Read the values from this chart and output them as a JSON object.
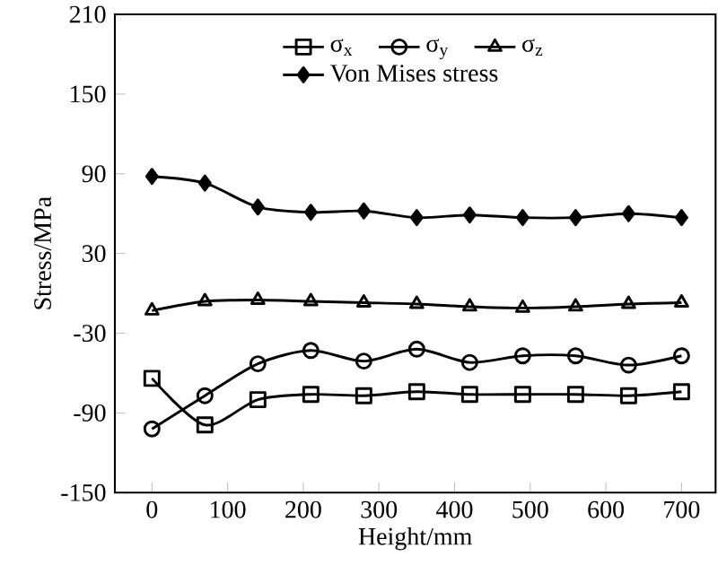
{
  "chart_data": {
    "type": "line",
    "xlabel": "Height/mm",
    "ylabel": "Stress/MPa",
    "x": [
      0,
      70,
      140,
      210,
      280,
      350,
      420,
      490,
      560,
      630,
      700
    ],
    "series": [
      {
        "name": "σ$_{x}$",
        "color": "#000000",
        "marker": "square",
        "values": [
          -64,
          -99,
          -80,
          -76,
          -77,
          -74,
          -76,
          -76,
          -76,
          -77,
          -74
        ]
      },
      {
        "name": "σ$_{y}$",
        "color": "#000000",
        "marker": "circle",
        "values": [
          -102,
          -77,
          -53,
          -43,
          -51,
          -42,
          -52,
          -47,
          -47,
          -54,
          -47
        ]
      },
      {
        "name": "σ$_{z}$",
        "color": "#000000",
        "marker": "triangle",
        "values": [
          -13,
          -6,
          -5,
          -6,
          -7,
          -8,
          -10,
          -11,
          -10,
          -8,
          -7
        ]
      },
      {
        "name": "Von Mises stress",
        "color": "#000000",
        "marker": "diamond",
        "values": [
          88,
          83,
          65,
          61,
          62,
          57,
          59,
          57,
          57,
          60,
          57
        ]
      }
    ],
    "xlim": [
      -49,
      745
    ],
    "ylim": [
      -150,
      210
    ],
    "xticks": [
      0,
      100,
      200,
      300,
      400,
      500,
      600,
      700
    ],
    "yticks": [
      -150,
      -90,
      -30,
      30,
      90,
      150,
      210
    ],
    "legend": "top",
    "grid": false,
    "line_style": "solid"
  }
}
